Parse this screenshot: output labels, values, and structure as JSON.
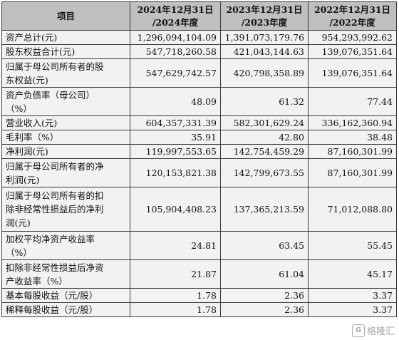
{
  "header": {
    "item": "项目",
    "col1": [
      "2024年12月31日",
      "/2024年度"
    ],
    "col2": [
      "2023年12月31日",
      "/2023年度"
    ],
    "col3": [
      "2022年12月31日",
      "/2022年度"
    ]
  },
  "rows": [
    {
      "label": [
        "资产总计(元)"
      ],
      "v": [
        "1,296,094,104.09",
        "1,391,073,179.76",
        "954,293,992.62"
      ]
    },
    {
      "label": [
        "股东权益合计(元)"
      ],
      "v": [
        "547,718,260.58",
        "421,043,144.63",
        "139,076,351.64"
      ]
    },
    {
      "label": [
        "归属于母公司所有者的股",
        "东权益(元)"
      ],
      "v": [
        "547,629,742.57",
        "420,798,358.89",
        "139,076,351.64"
      ]
    },
    {
      "label": [
        "资产负债率（母公司）",
        "（%）"
      ],
      "v": [
        "48.09",
        "61.32",
        "77.44"
      ]
    },
    {
      "label": [
        "营业收入(元)"
      ],
      "v": [
        "604,357,331.39",
        "582,301,629.24",
        "336,162,360.94"
      ]
    },
    {
      "label": [
        "毛利率（%）"
      ],
      "v": [
        "35.91",
        "42.80",
        "38.48"
      ]
    },
    {
      "label": [
        "净利润(元)"
      ],
      "v": [
        "119,997,553.65",
        "142,754,459.29",
        "87,160,301.99"
      ]
    },
    {
      "label": [
        "归属于母公司所有者的净",
        "利润(元)"
      ],
      "v": [
        "120,153,821.38",
        "142,799,673.55",
        "87,160,301.99"
      ]
    },
    {
      "label": [
        "归属于母公司所有者的扣",
        "除非经常性损益后的净利",
        "润(元)"
      ],
      "v": [
        "105,904,408.23",
        "137,365,213.59",
        "71,012,088.80"
      ]
    },
    {
      "label": [
        "加权平均净资产收益率",
        "（%）"
      ],
      "v": [
        "24.81",
        "63.45",
        "55.45"
      ]
    },
    {
      "label": [
        "扣除非经常性损益后净资",
        "产收益率（%）"
      ],
      "v": [
        "21.87",
        "61.04",
        "45.17"
      ]
    },
    {
      "label": [
        "基本每股收益（元/股）"
      ],
      "v": [
        "1.78",
        "2.36",
        "3.37"
      ]
    },
    {
      "label": [
        "稀释每股收益（元/股）"
      ],
      "v": [
        "1.78",
        "2.36",
        "3.37"
      ]
    }
  ],
  "watermark": {
    "text": "格隆汇",
    "logo": "G"
  },
  "colors": {
    "header_bg": "#bfbfbf",
    "row_bg": "#f2f2f2",
    "border": "#3a3a3a"
  }
}
